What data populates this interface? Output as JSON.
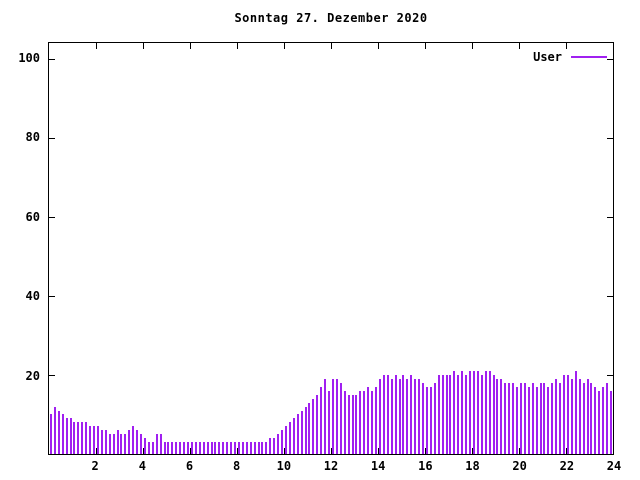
{
  "title": "Sonntag 27. Dezember 2020",
  "chart_data": {
    "type": "bar",
    "title": "Sonntag 27. Dezember 2020",
    "xlabel": "",
    "ylabel": "",
    "xlim": [
      0,
      24
    ],
    "ylim": [
      0,
      104
    ],
    "x_ticks": [
      2,
      4,
      6,
      8,
      10,
      12,
      14,
      16,
      18,
      20,
      22,
      24
    ],
    "y_ticks": [
      20,
      40,
      60,
      80,
      100
    ],
    "grid": false,
    "legend_position": "top-right",
    "bar_color": "#a020f0",
    "legend": [
      {
        "name": "User",
        "color": "#a020f0"
      }
    ],
    "samples_per_hour": 6,
    "x_unit": "hour",
    "values": [
      10,
      12,
      11,
      10,
      9,
      9,
      8,
      8,
      8,
      8,
      7,
      7,
      7,
      6,
      6,
      5,
      5,
      6,
      5,
      5,
      6,
      7,
      6,
      5,
      4,
      3,
      3,
      5,
      5,
      3,
      3,
      3,
      3,
      3,
      3,
      3,
      3,
      3,
      3,
      3,
      3,
      3,
      3,
      3,
      3,
      3,
      3,
      3,
      3,
      3,
      3,
      3,
      3,
      3,
      3,
      3,
      4,
      4,
      5,
      6,
      7,
      8,
      9,
      10,
      11,
      12,
      13,
      14,
      15,
      17,
      19,
      16,
      19,
      19,
      18,
      16,
      15,
      15,
      15,
      16,
      16,
      17,
      16,
      17,
      19,
      20,
      20,
      19,
      20,
      19,
      20,
      19,
      20,
      19,
      19,
      18,
      17,
      17,
      18,
      20,
      20,
      20,
      20,
      21,
      20,
      21,
      20,
      21,
      21,
      21,
      20,
      21,
      21,
      20,
      19,
      19,
      18,
      18,
      18,
      17,
      18,
      18,
      17,
      18,
      17,
      18,
      18,
      17,
      18,
      19,
      18,
      20,
      20,
      19,
      21,
      19,
      18,
      19,
      18,
      17,
      16,
      17,
      18,
      16
    ]
  }
}
